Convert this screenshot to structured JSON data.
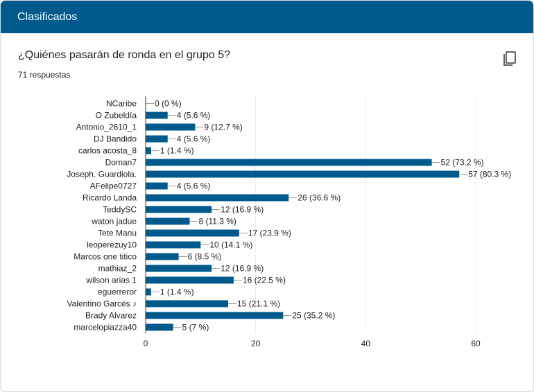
{
  "header": {
    "title": "Clasificados"
  },
  "question": {
    "title": "¿Quiénes pasarán de ronda en el grupo 5?",
    "responses": "71 respuestas"
  },
  "icons": {
    "copy": "copy-icon"
  },
  "colors": {
    "header": "#005a8c",
    "bar": "#005a8c"
  },
  "chart_data": {
    "type": "bar",
    "orientation": "horizontal",
    "categories": [
      "NCaribe",
      "O Zubeldía",
      "Antonio_2610_1",
      "DJ Bandido",
      "carlos acosta_8",
      "Doman7",
      "Joseph. Guardiola.",
      "AFelipe0727",
      "Ricardo Landa",
      "TeddySC",
      "waton jadue",
      "Tete Manu",
      "leoperezuy10",
      "Marcos one titico",
      "mathiaz_2",
      "wilson arias 1",
      "eguerreror",
      "Valentino Garcés ♪",
      "Brady Alvarez",
      "marcelopiazza40"
    ],
    "values": [
      0,
      4,
      9,
      4,
      1,
      52,
      57,
      4,
      26,
      12,
      8,
      17,
      10,
      6,
      12,
      16,
      1,
      15,
      25,
      5
    ],
    "data_labels": [
      "0 (0 %)",
      "4 (5.6 %)",
      "9 (12.7 %)",
      "4 (5.6 %)",
      "1 (1.4 %)",
      "52 (73.2 %)",
      "57 (80.3 %)",
      "4 (5.6 %)",
      "26 (36.6 %)",
      "12 (16.9 %)",
      "8 (11.3 %)",
      "17 (23.9 %)",
      "10 (14.1 %)",
      "6 (8.5 %)",
      "12 (16.9 %)",
      "16 (22.5 %)",
      "1 (1.4 %)",
      "15 (21.1 %)",
      "25 (35.2 %)",
      "5 (7 %)"
    ],
    "x_ticks": [
      "0",
      "20",
      "40",
      "60"
    ],
    "xlim": [
      0,
      60
    ],
    "grid": true
  }
}
